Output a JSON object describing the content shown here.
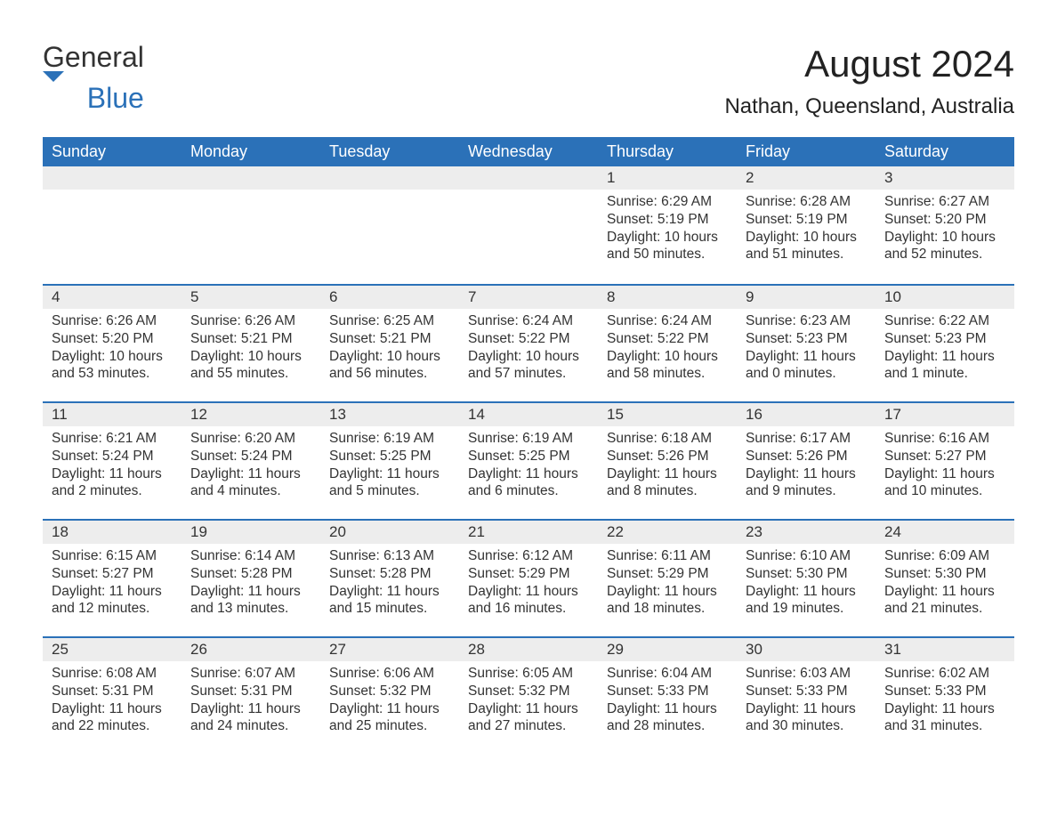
{
  "logo": {
    "text_general": "General",
    "text_blue": "Blue"
  },
  "title": "August 2024",
  "subtitle": "Nathan, Queensland, Australia",
  "colors": {
    "header_bg": "#2b71b8",
    "header_text": "#ffffff",
    "stripe_bg": "#ededed",
    "stripe_border": "#2b71b8",
    "body_text": "#333333",
    "page_bg": "#ffffff"
  },
  "day_headers": [
    "Sunday",
    "Monday",
    "Tuesday",
    "Wednesday",
    "Thursday",
    "Friday",
    "Saturday"
  ],
  "weeks": [
    [
      null,
      null,
      null,
      null,
      {
        "n": "1",
        "sunrise": "6:29 AM",
        "sunset": "5:19 PM",
        "daylight": "10 hours and 50 minutes."
      },
      {
        "n": "2",
        "sunrise": "6:28 AM",
        "sunset": "5:19 PM",
        "daylight": "10 hours and 51 minutes."
      },
      {
        "n": "3",
        "sunrise": "6:27 AM",
        "sunset": "5:20 PM",
        "daylight": "10 hours and 52 minutes."
      }
    ],
    [
      {
        "n": "4",
        "sunrise": "6:26 AM",
        "sunset": "5:20 PM",
        "daylight": "10 hours and 53 minutes."
      },
      {
        "n": "5",
        "sunrise": "6:26 AM",
        "sunset": "5:21 PM",
        "daylight": "10 hours and 55 minutes."
      },
      {
        "n": "6",
        "sunrise": "6:25 AM",
        "sunset": "5:21 PM",
        "daylight": "10 hours and 56 minutes."
      },
      {
        "n": "7",
        "sunrise": "6:24 AM",
        "sunset": "5:22 PM",
        "daylight": "10 hours and 57 minutes."
      },
      {
        "n": "8",
        "sunrise": "6:24 AM",
        "sunset": "5:22 PM",
        "daylight": "10 hours and 58 minutes."
      },
      {
        "n": "9",
        "sunrise": "6:23 AM",
        "sunset": "5:23 PM",
        "daylight": "11 hours and 0 minutes."
      },
      {
        "n": "10",
        "sunrise": "6:22 AM",
        "sunset": "5:23 PM",
        "daylight": "11 hours and 1 minute."
      }
    ],
    [
      {
        "n": "11",
        "sunrise": "6:21 AM",
        "sunset": "5:24 PM",
        "daylight": "11 hours and 2 minutes."
      },
      {
        "n": "12",
        "sunrise": "6:20 AM",
        "sunset": "5:24 PM",
        "daylight": "11 hours and 4 minutes."
      },
      {
        "n": "13",
        "sunrise": "6:19 AM",
        "sunset": "5:25 PM",
        "daylight": "11 hours and 5 minutes."
      },
      {
        "n": "14",
        "sunrise": "6:19 AM",
        "sunset": "5:25 PM",
        "daylight": "11 hours and 6 minutes."
      },
      {
        "n": "15",
        "sunrise": "6:18 AM",
        "sunset": "5:26 PM",
        "daylight": "11 hours and 8 minutes."
      },
      {
        "n": "16",
        "sunrise": "6:17 AM",
        "sunset": "5:26 PM",
        "daylight": "11 hours and 9 minutes."
      },
      {
        "n": "17",
        "sunrise": "6:16 AM",
        "sunset": "5:27 PM",
        "daylight": "11 hours and 10 minutes."
      }
    ],
    [
      {
        "n": "18",
        "sunrise": "6:15 AM",
        "sunset": "5:27 PM",
        "daylight": "11 hours and 12 minutes."
      },
      {
        "n": "19",
        "sunrise": "6:14 AM",
        "sunset": "5:28 PM",
        "daylight": "11 hours and 13 minutes."
      },
      {
        "n": "20",
        "sunrise": "6:13 AM",
        "sunset": "5:28 PM",
        "daylight": "11 hours and 15 minutes."
      },
      {
        "n": "21",
        "sunrise": "6:12 AM",
        "sunset": "5:29 PM",
        "daylight": "11 hours and 16 minutes."
      },
      {
        "n": "22",
        "sunrise": "6:11 AM",
        "sunset": "5:29 PM",
        "daylight": "11 hours and 18 minutes."
      },
      {
        "n": "23",
        "sunrise": "6:10 AM",
        "sunset": "5:30 PM",
        "daylight": "11 hours and 19 minutes."
      },
      {
        "n": "24",
        "sunrise": "6:09 AM",
        "sunset": "5:30 PM",
        "daylight": "11 hours and 21 minutes."
      }
    ],
    [
      {
        "n": "25",
        "sunrise": "6:08 AM",
        "sunset": "5:31 PM",
        "daylight": "11 hours and 22 minutes."
      },
      {
        "n": "26",
        "sunrise": "6:07 AM",
        "sunset": "5:31 PM",
        "daylight": "11 hours and 24 minutes."
      },
      {
        "n": "27",
        "sunrise": "6:06 AM",
        "sunset": "5:32 PM",
        "daylight": "11 hours and 25 minutes."
      },
      {
        "n": "28",
        "sunrise": "6:05 AM",
        "sunset": "5:32 PM",
        "daylight": "11 hours and 27 minutes."
      },
      {
        "n": "29",
        "sunrise": "6:04 AM",
        "sunset": "5:33 PM",
        "daylight": "11 hours and 28 minutes."
      },
      {
        "n": "30",
        "sunrise": "6:03 AM",
        "sunset": "5:33 PM",
        "daylight": "11 hours and 30 minutes."
      },
      {
        "n": "31",
        "sunrise": "6:02 AM",
        "sunset": "5:33 PM",
        "daylight": "11 hours and 31 minutes."
      }
    ]
  ],
  "labels": {
    "sunrise": "Sunrise: ",
    "sunset": "Sunset: ",
    "daylight": "Daylight: "
  }
}
